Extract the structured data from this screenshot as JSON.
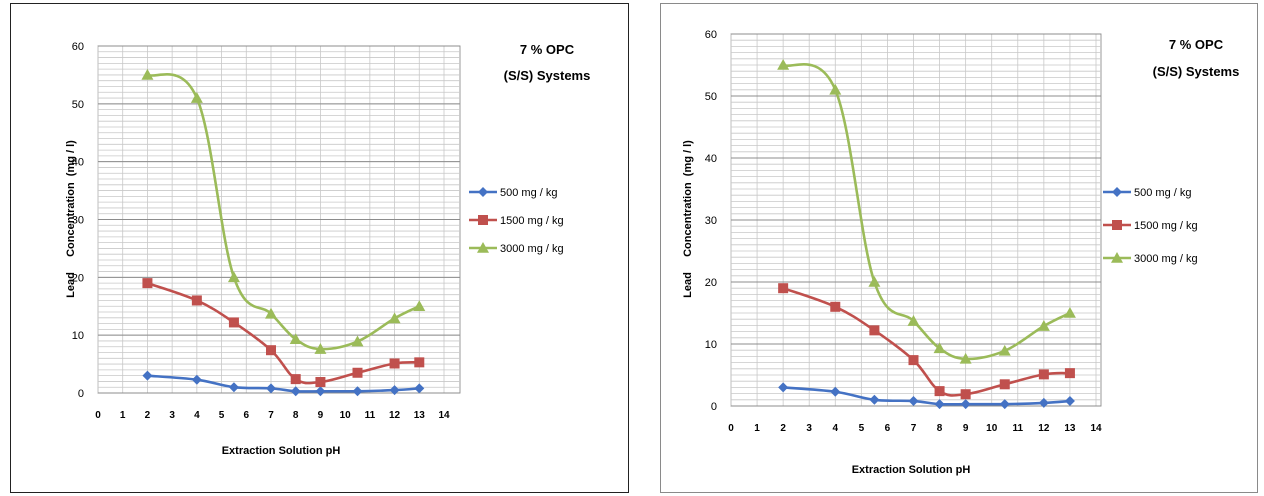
{
  "chart_data": [
    {
      "type": "line",
      "title_lines": [
        "7 % OPC",
        "(S/S) Systems"
      ],
      "xlabel": "Extraction Solution pH",
      "ylabel": "Lead     Concentration  (mg / l)",
      "xlim": [
        0,
        14
      ],
      "ylim": [
        0,
        60
      ],
      "xticks": [
        0,
        1,
        2,
        3,
        4,
        5,
        6,
        7,
        8,
        9,
        10,
        11,
        12,
        13,
        14
      ],
      "yticks": [
        0,
        10,
        20,
        30,
        40,
        50,
        60
      ],
      "grid": true,
      "legend": "right",
      "series": [
        {
          "name": "500 mg / kg",
          "color": "#4472c4",
          "marker": "diamond",
          "x": [
            2,
            4,
            5.5,
            7,
            8,
            9,
            10.5,
            12,
            13
          ],
          "y": [
            3,
            2.3,
            1,
            0.8,
            0.3,
            0.3,
            0.3,
            0.5,
            0.8
          ]
        },
        {
          "name": "1500 mg / kg",
          "color": "#c0504d",
          "marker": "square",
          "x": [
            2,
            4,
            5.5,
            7,
            8,
            9,
            10.5,
            12,
            13
          ],
          "y": [
            19,
            16,
            12.2,
            7.4,
            2.4,
            1.9,
            3.5,
            5.1,
            5.3
          ]
        },
        {
          "name": "3000 mg / kg",
          "color": "#9bbb59",
          "marker": "triangle",
          "x": [
            2,
            4,
            5.5,
            7,
            8,
            9,
            10.5,
            12,
            13
          ],
          "y": [
            55,
            51,
            20,
            13.7,
            9.3,
            7.6,
            8.9,
            12.9,
            15
          ]
        }
      ]
    },
    {
      "type": "line",
      "title_lines": [
        "7 % OPC",
        "(S/S) Systems"
      ],
      "xlabel": "Extraction Solution pH",
      "ylabel": "Lead     Concentration  (mg / l)",
      "xlim": [
        0,
        14
      ],
      "ylim": [
        0,
        60
      ],
      "xticks": [
        0,
        1,
        2,
        3,
        4,
        5,
        6,
        7,
        8,
        9,
        10,
        11,
        12,
        13,
        14
      ],
      "yticks": [
        0,
        10,
        20,
        30,
        40,
        50,
        60
      ],
      "grid": true,
      "legend": "right",
      "series": [
        {
          "name": "500 mg / kg",
          "color": "#4472c4",
          "marker": "diamond",
          "x": [
            2,
            4,
            5.5,
            7,
            8,
            9,
            10.5,
            12,
            13
          ],
          "y": [
            3,
            2.3,
            1,
            0.8,
            0.3,
            0.3,
            0.3,
            0.5,
            0.8
          ]
        },
        {
          "name": "1500 mg / kg",
          "color": "#c0504d",
          "marker": "square",
          "x": [
            2,
            4,
            5.5,
            7,
            8,
            9,
            10.5,
            12,
            13
          ],
          "y": [
            19,
            16,
            12.2,
            7.4,
            2.4,
            1.9,
            3.5,
            5.1,
            5.3
          ]
        },
        {
          "name": "3000 mg / kg",
          "color": "#9bbb59",
          "marker": "triangle",
          "x": [
            2,
            4,
            5.5,
            7,
            8,
            9,
            10.5,
            12,
            13
          ],
          "y": [
            55,
            51,
            20,
            13.7,
            9.3,
            7.6,
            8.9,
            12.9,
            15
          ]
        }
      ]
    }
  ]
}
